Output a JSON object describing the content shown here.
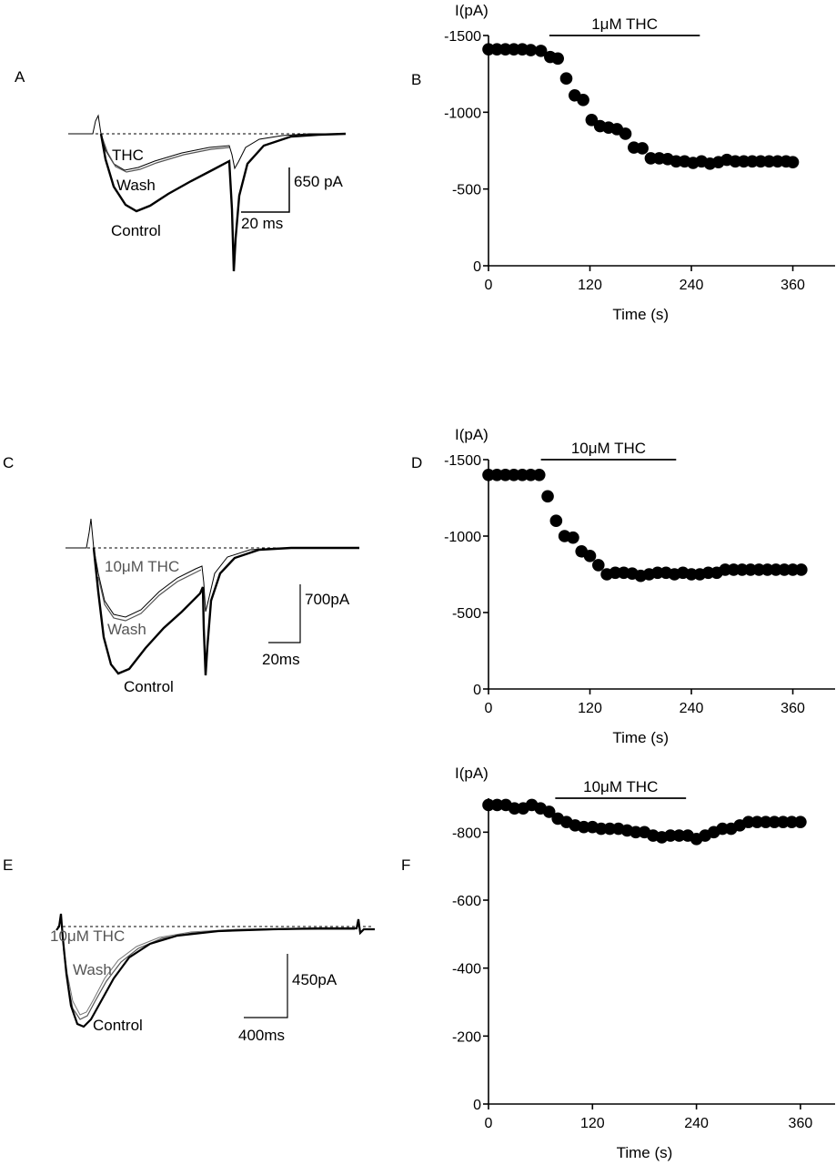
{
  "panels": {
    "A": {
      "letter": "A",
      "labels": {
        "thc": "THC",
        "wash": "Wash",
        "control": "Control"
      },
      "scale": {
        "y_label": "650 pA",
        "x_label": "20 ms"
      }
    },
    "C": {
      "letter": "C",
      "labels": {
        "thc": "10μM THC",
        "wash": "Wash",
        "control": "Control"
      },
      "scale": {
        "y_label": "700pA",
        "x_label": "20ms"
      }
    },
    "E": {
      "letter": "E",
      "labels": {
        "thc": "10μM THC",
        "wash": "Wash",
        "control": "Control"
      },
      "scale": {
        "y_label": "450pA",
        "x_label": "400ms"
      }
    }
  },
  "chart_data": [
    {
      "id": "B",
      "letter": "B",
      "type": "scatter",
      "ylabel": "I(pA)",
      "xlabel": "Time (s)",
      "xlim": [
        0,
        410
      ],
      "ylim": [
        0,
        -1500
      ],
      "xticks": [
        0,
        120,
        240,
        360
      ],
      "yticks": [
        0,
        -500,
        -1000,
        -1500
      ],
      "drug_bar": {
        "label": "1μM THC",
        "start": 72,
        "end": 250
      },
      "x": [
        0,
        10,
        20,
        30,
        40,
        50,
        62,
        73,
        82,
        92,
        102,
        112,
        122,
        132,
        142,
        152,
        162,
        172,
        182,
        192,
        202,
        212,
        222,
        232,
        242,
        252,
        262,
        272,
        282,
        292,
        302,
        312,
        322,
        332,
        342,
        352,
        360
      ],
      "y": [
        -1410,
        -1410,
        -1410,
        -1410,
        -1410,
        -1405,
        -1400,
        -1360,
        -1350,
        -1220,
        -1110,
        -1080,
        -950,
        -910,
        -900,
        -890,
        -860,
        -770,
        -765,
        -700,
        -700,
        -695,
        -680,
        -680,
        -670,
        -680,
        -665,
        -675,
        -690,
        -680,
        -680,
        -680,
        -680,
        -680,
        -680,
        -680,
        -675
      ]
    },
    {
      "id": "D",
      "letter": "D",
      "type": "scatter",
      "ylabel": "I(pA)",
      "xlabel": "Time (s)",
      "xlim": [
        0,
        410
      ],
      "ylim": [
        0,
        -1500
      ],
      "xticks": [
        0,
        120,
        240,
        360
      ],
      "yticks": [
        0,
        -500,
        -1000,
        -1500
      ],
      "drug_bar": {
        "label": "10μM THC",
        "start": 62,
        "end": 222
      },
      "x": [
        0,
        10,
        20,
        30,
        40,
        50,
        60,
        70,
        80,
        90,
        100,
        110,
        120,
        130,
        140,
        150,
        160,
        170,
        180,
        190,
        200,
        210,
        220,
        230,
        240,
        250,
        260,
        270,
        280,
        290,
        300,
        310,
        320,
        330,
        340,
        350,
        360,
        370
      ],
      "y": [
        -1400,
        -1400,
        -1400,
        -1400,
        -1400,
        -1400,
        -1400,
        -1260,
        -1100,
        -1000,
        -990,
        -900,
        -870,
        -810,
        -750,
        -760,
        -760,
        -755,
        -740,
        -750,
        -760,
        -760,
        -750,
        -760,
        -750,
        -750,
        -760,
        -760,
        -780,
        -780,
        -780,
        -780,
        -780,
        -780,
        -780,
        -780,
        -780,
        -780
      ]
    },
    {
      "id": "F",
      "letter": "F",
      "type": "scatter",
      "ylabel": "I(pA)",
      "xlabel": "Time (s)",
      "xlim": [
        0,
        400
      ],
      "ylim": [
        0,
        -900
      ],
      "xticks": [
        0,
        120,
        240,
        360
      ],
      "yticks": [
        0,
        -200,
        -400,
        -600,
        -800
      ],
      "drug_bar": {
        "label": "10μM THC",
        "start": 77,
        "end": 228
      },
      "x": [
        0,
        10,
        20,
        30,
        40,
        50,
        60,
        70,
        80,
        90,
        100,
        110,
        120,
        130,
        140,
        150,
        160,
        170,
        180,
        190,
        200,
        210,
        220,
        230,
        240,
        250,
        260,
        270,
        280,
        290,
        300,
        310,
        320,
        330,
        340,
        350,
        360
      ],
      "y": [
        -880,
        -880,
        -880,
        -870,
        -870,
        -880,
        -870,
        -860,
        -840,
        -830,
        -820,
        -815,
        -815,
        -810,
        -810,
        -810,
        -805,
        -800,
        -800,
        -790,
        -785,
        -790,
        -790,
        -790,
        -780,
        -790,
        -800,
        -810,
        -810,
        -820,
        -830,
        -830,
        -830,
        -830,
        -830,
        -830,
        -830
      ]
    }
  ]
}
